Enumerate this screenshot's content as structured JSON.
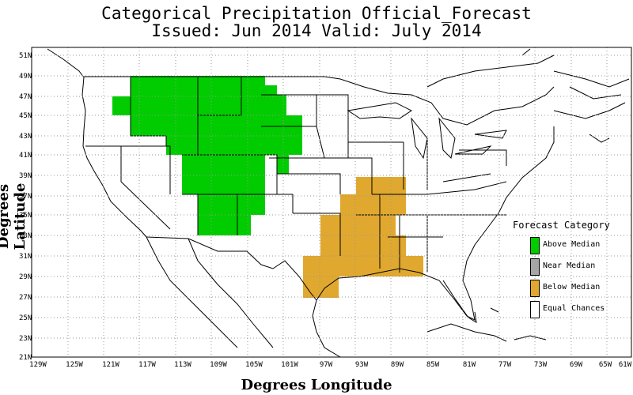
{
  "title_line1": "Categorical Precipitation Official_Forecast",
  "title_line2": "Issued: Jun 2014 Valid: July 2014",
  "axis": {
    "xlabel": "Degrees Longitude",
    "ylabel": "Degrees Latitude",
    "x_ticks": [
      "129W",
      "125W",
      "121W",
      "117W",
      "113W",
      "109W",
      "105W",
      "101W",
      "97W",
      "93W",
      "89W",
      "85W",
      "81W",
      "77W",
      "73W",
      "69W",
      "65W",
      "61W"
    ],
    "y_ticks": [
      "51N",
      "49N",
      "47N",
      "45N",
      "43N",
      "41N",
      "39N",
      "37N",
      "35N",
      "33N",
      "31N",
      "29N",
      "27N",
      "25N",
      "23N",
      "21N"
    ],
    "grid": "dotted"
  },
  "legend": {
    "title": "Forecast Category",
    "items": [
      {
        "label": "Above Median",
        "color": "#00cc00"
      },
      {
        "label": "Near Median",
        "color": "#a6a6a6"
      },
      {
        "label": "Below Median",
        "color": "#e0a82e"
      },
      {
        "label": "Equal Chances",
        "color": "#ffffff"
      }
    ]
  },
  "regions": {
    "above_median": "Northern/Central Rockies and High Plains (MT, WY, CO, ID, SD, NE, NM, UT)",
    "below_median": "Lower Mississippi Valley and Gulf Coast (TX, LA, AR, MS, AL, TN)"
  }
}
